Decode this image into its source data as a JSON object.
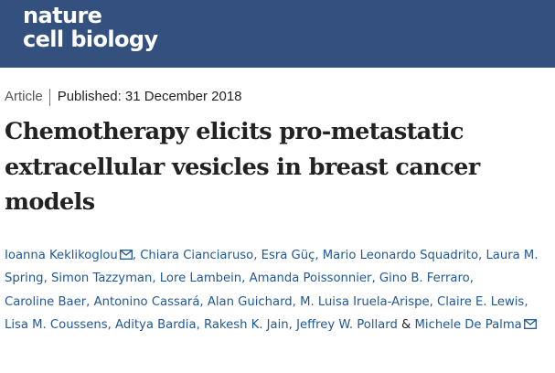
{
  "journal": {
    "name_line1": "nature",
    "name_line2": "cell biology"
  },
  "article": {
    "type": "Article",
    "published_label": "Published:",
    "published_date": "31 December 2018",
    "title": "Chemotherapy elicits pro-metastatic extracellular vesicles in breast cancer models"
  },
  "authors": [
    "Ioanna Keklikoglou",
    "Chiara Cianciaruso",
    "Esra Güç",
    "Mario Leonardo Squadrito",
    "Laura M. Spring",
    "Simon Tazzyman",
    "Lore Lambein",
    "Amanda Poissonnier",
    "Gino B. Ferraro",
    "Caroline Baer",
    "Antonino Cassará",
    "Alan Guichard",
    "M. Luisa Iruela-Arispe",
    "Claire E. Lewis",
    "Lisa M. Coussens",
    "Aditya Bardia",
    "Rakesh K. Jain",
    "Jeffrey W. Pollard",
    "Michele De Palma"
  ],
  "separators": {
    "comma": ",",
    "ampersand": "&"
  },
  "icons": {
    "corresponding_author": "mail-icon"
  },
  "colors": {
    "header_bg": "#33507e",
    "author_link": "#1f5797",
    "text": "#222222"
  }
}
